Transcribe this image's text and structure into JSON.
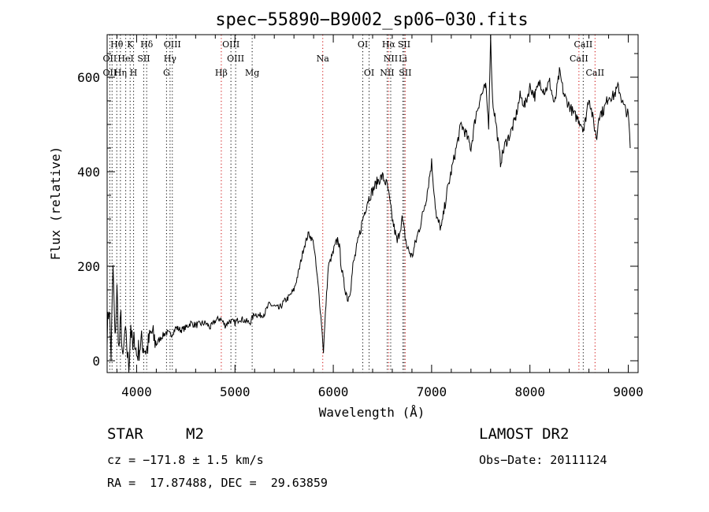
{
  "chart_data": {
    "type": "line",
    "title": "spec−55890−B9002_sp06−030.fits",
    "xlabel": "Wavelength (Å)",
    "ylabel": "Flux (relative)",
    "xlim": [
      3700,
      9100
    ],
    "ylim": [
      -25,
      690
    ],
    "xticks": [
      4000,
      5000,
      6000,
      7000,
      8000,
      9000
    ],
    "yticks": [
      0,
      200,
      400,
      600
    ],
    "grid": false,
    "series": [
      {
        "x": [
          3700,
          3720,
          3740,
          3760,
          3780,
          3800,
          3820,
          3840,
          3860,
          3880,
          3900,
          3920,
          3940,
          3960,
          3980,
          4000,
          4050,
          4100,
          4150,
          4200,
          4250,
          4300,
          4350,
          4400,
          4450,
          4500,
          4550,
          4600,
          4650,
          4700,
          4750,
          4800,
          4850,
          4900,
          4950,
          5000,
          5050,
          5100,
          5150,
          5200,
          5250,
          5300,
          5350,
          5400,
          5450,
          5500,
          5550,
          5600,
          5650,
          5700,
          5750,
          5800,
          5850,
          5880,
          5900,
          5920,
          5950,
          6000,
          6050,
          6100,
          6150,
          6180,
          6200,
          6250,
          6300,
          6350,
          6400,
          6450,
          6500,
          6550,
          6600,
          6650,
          6700,
          6750,
          6800,
          6850,
          6900,
          6950,
          7000,
          7050,
          7100,
          7150,
          7200,
          7250,
          7300,
          7350,
          7400,
          7450,
          7500,
          7550,
          7580,
          7600,
          7620,
          7650,
          7700,
          7750,
          7800,
          7850,
          7900,
          7950,
          8000,
          8050,
          8100,
          8150,
          8200,
          8250,
          8300,
          8350,
          8400,
          8450,
          8500,
          8550,
          8600,
          8650,
          8680,
          8700,
          8750,
          8800,
          8850,
          8900,
          8950,
          9000,
          9020
        ],
        "y": [
          60,
          120,
          10,
          200,
          40,
          150,
          20,
          90,
          -10,
          60,
          30,
          -15,
          80,
          20,
          50,
          10,
          40,
          20,
          60,
          35,
          50,
          60,
          55,
          70,
          65,
          70,
          80,
          75,
          78,
          80,
          70,
          85,
          90,
          75,
          85,
          80,
          90,
          85,
          80,
          100,
          95,
          100,
          120,
          115,
          110,
          125,
          135,
          150,
          190,
          240,
          270,
          250,
          150,
          80,
          20,
          100,
          200,
          230,
          260,
          170,
          130,
          160,
          200,
          250,
          300,
          340,
          360,
          380,
          390,
          370,
          300,
          250,
          300,
          240,
          220,
          260,
          300,
          350,
          420,
          300,
          280,
          350,
          400,
          450,
          500,
          480,
          450,
          520,
          560,
          580,
          500,
          690,
          550,
          510,
          420,
          460,
          480,
          510,
          560,
          540,
          580,
          560,
          590,
          570,
          590,
          540,
          610,
          560,
          540,
          520,
          510,
          490,
          560,
          500,
          470,
          520,
          530,
          560,
          560,
          580,
          540,
          520,
          450
        ]
      }
    ],
    "line_labels": [
      {
        "text": "Hθ",
        "wl": 3798,
        "row": 0
      },
      {
        "text": "K",
        "wl": 3934,
        "row": 0
      },
      {
        "text": "Hδ",
        "wl": 4102,
        "row": 0
      },
      {
        "text": "OIII",
        "wl": 4363,
        "row": 0
      },
      {
        "text": "OIII",
        "wl": 4959,
        "row": 0
      },
      {
        "text": "OI",
        "wl": 6300,
        "row": 0
      },
      {
        "text": "Hα",
        "wl": 6563,
        "row": 0
      },
      {
        "text": "SII",
        "wl": 6720,
        "row": 0
      },
      {
        "text": "CaII",
        "wl": 8542,
        "row": 0
      },
      {
        "text": "OII",
        "wl": 3727,
        "row": 1
      },
      {
        "text": "HeI",
        "wl": 3889,
        "row": 1
      },
      {
        "text": "SII",
        "wl": 4072,
        "row": 1
      },
      {
        "text": "Hγ",
        "wl": 4340,
        "row": 1
      },
      {
        "text": "OIII",
        "wl": 5007,
        "row": 1
      },
      {
        "text": "Na",
        "wl": 5893,
        "row": 1
      },
      {
        "text": "NII",
        "wl": 6584,
        "row": 1
      },
      {
        "text": "Li",
        "wl": 6708,
        "row": 1
      },
      {
        "text": "CaII",
        "wl": 8498,
        "row": 1
      },
      {
        "text": "OII",
        "wl": 3727,
        "row": 2
      },
      {
        "text": "Hη",
        "wl": 3835,
        "row": 2
      },
      {
        "text": "H",
        "wl": 3969,
        "row": 2
      },
      {
        "text": "G",
        "wl": 4304,
        "row": 2
      },
      {
        "text": "Hβ",
        "wl": 4861,
        "row": 2
      },
      {
        "text": "Mg",
        "wl": 5175,
        "row": 2
      },
      {
        "text": "OI",
        "wl": 6364,
        "row": 2
      },
      {
        "text": "NII",
        "wl": 6548,
        "row": 2
      },
      {
        "text": "SII",
        "wl": 6731,
        "row": 2
      },
      {
        "text": "CaII",
        "wl": 8662,
        "row": 2
      }
    ],
    "line_marks": [
      {
        "wl": 3727,
        "color": "#000000"
      },
      {
        "wl": 3750,
        "color": "#000000"
      },
      {
        "wl": 3798,
        "color": "#000000"
      },
      {
        "wl": 3835,
        "color": "#000000"
      },
      {
        "wl": 3889,
        "color": "#000000"
      },
      {
        "wl": 3934,
        "color": "#000000"
      },
      {
        "wl": 3969,
        "color": "#000000"
      },
      {
        "wl": 4072,
        "color": "#000000"
      },
      {
        "wl": 4102,
        "color": "#000000"
      },
      {
        "wl": 4304,
        "color": "#000000"
      },
      {
        "wl": 4340,
        "color": "#000000"
      },
      {
        "wl": 4363,
        "color": "#000000"
      },
      {
        "wl": 4861,
        "color": "#cc0000"
      },
      {
        "wl": 4959,
        "color": "#000000"
      },
      {
        "wl": 5007,
        "color": "#000000"
      },
      {
        "wl": 5175,
        "color": "#000000"
      },
      {
        "wl": 5893,
        "color": "#cc0000"
      },
      {
        "wl": 6300,
        "color": "#000000"
      },
      {
        "wl": 6364,
        "color": "#000000"
      },
      {
        "wl": 6548,
        "color": "#000000"
      },
      {
        "wl": 6563,
        "color": "#cc0000"
      },
      {
        "wl": 6584,
        "color": "#000000"
      },
      {
        "wl": 6708,
        "color": "#000000"
      },
      {
        "wl": 6720,
        "color": "#000000"
      },
      {
        "wl": 6731,
        "color": "#cc0000"
      },
      {
        "wl": 8498,
        "color": "#cc0000"
      },
      {
        "wl": 8542,
        "color": "#000000"
      },
      {
        "wl": 8662,
        "color": "#cc0000"
      }
    ]
  },
  "info": {
    "object_class": "STAR",
    "subclass": "M2",
    "survey": "LAMOST DR2",
    "cz": "cz = −171.8 ± 1.5 km/s",
    "obs_date": "Obs−Date: 20111124",
    "coords": "RA =  17.87488, DEC =  29.63859"
  },
  "colors": {
    "spectrum": "#000000",
    "marker_red": "#cc0000",
    "marker_black": "#000000"
  }
}
